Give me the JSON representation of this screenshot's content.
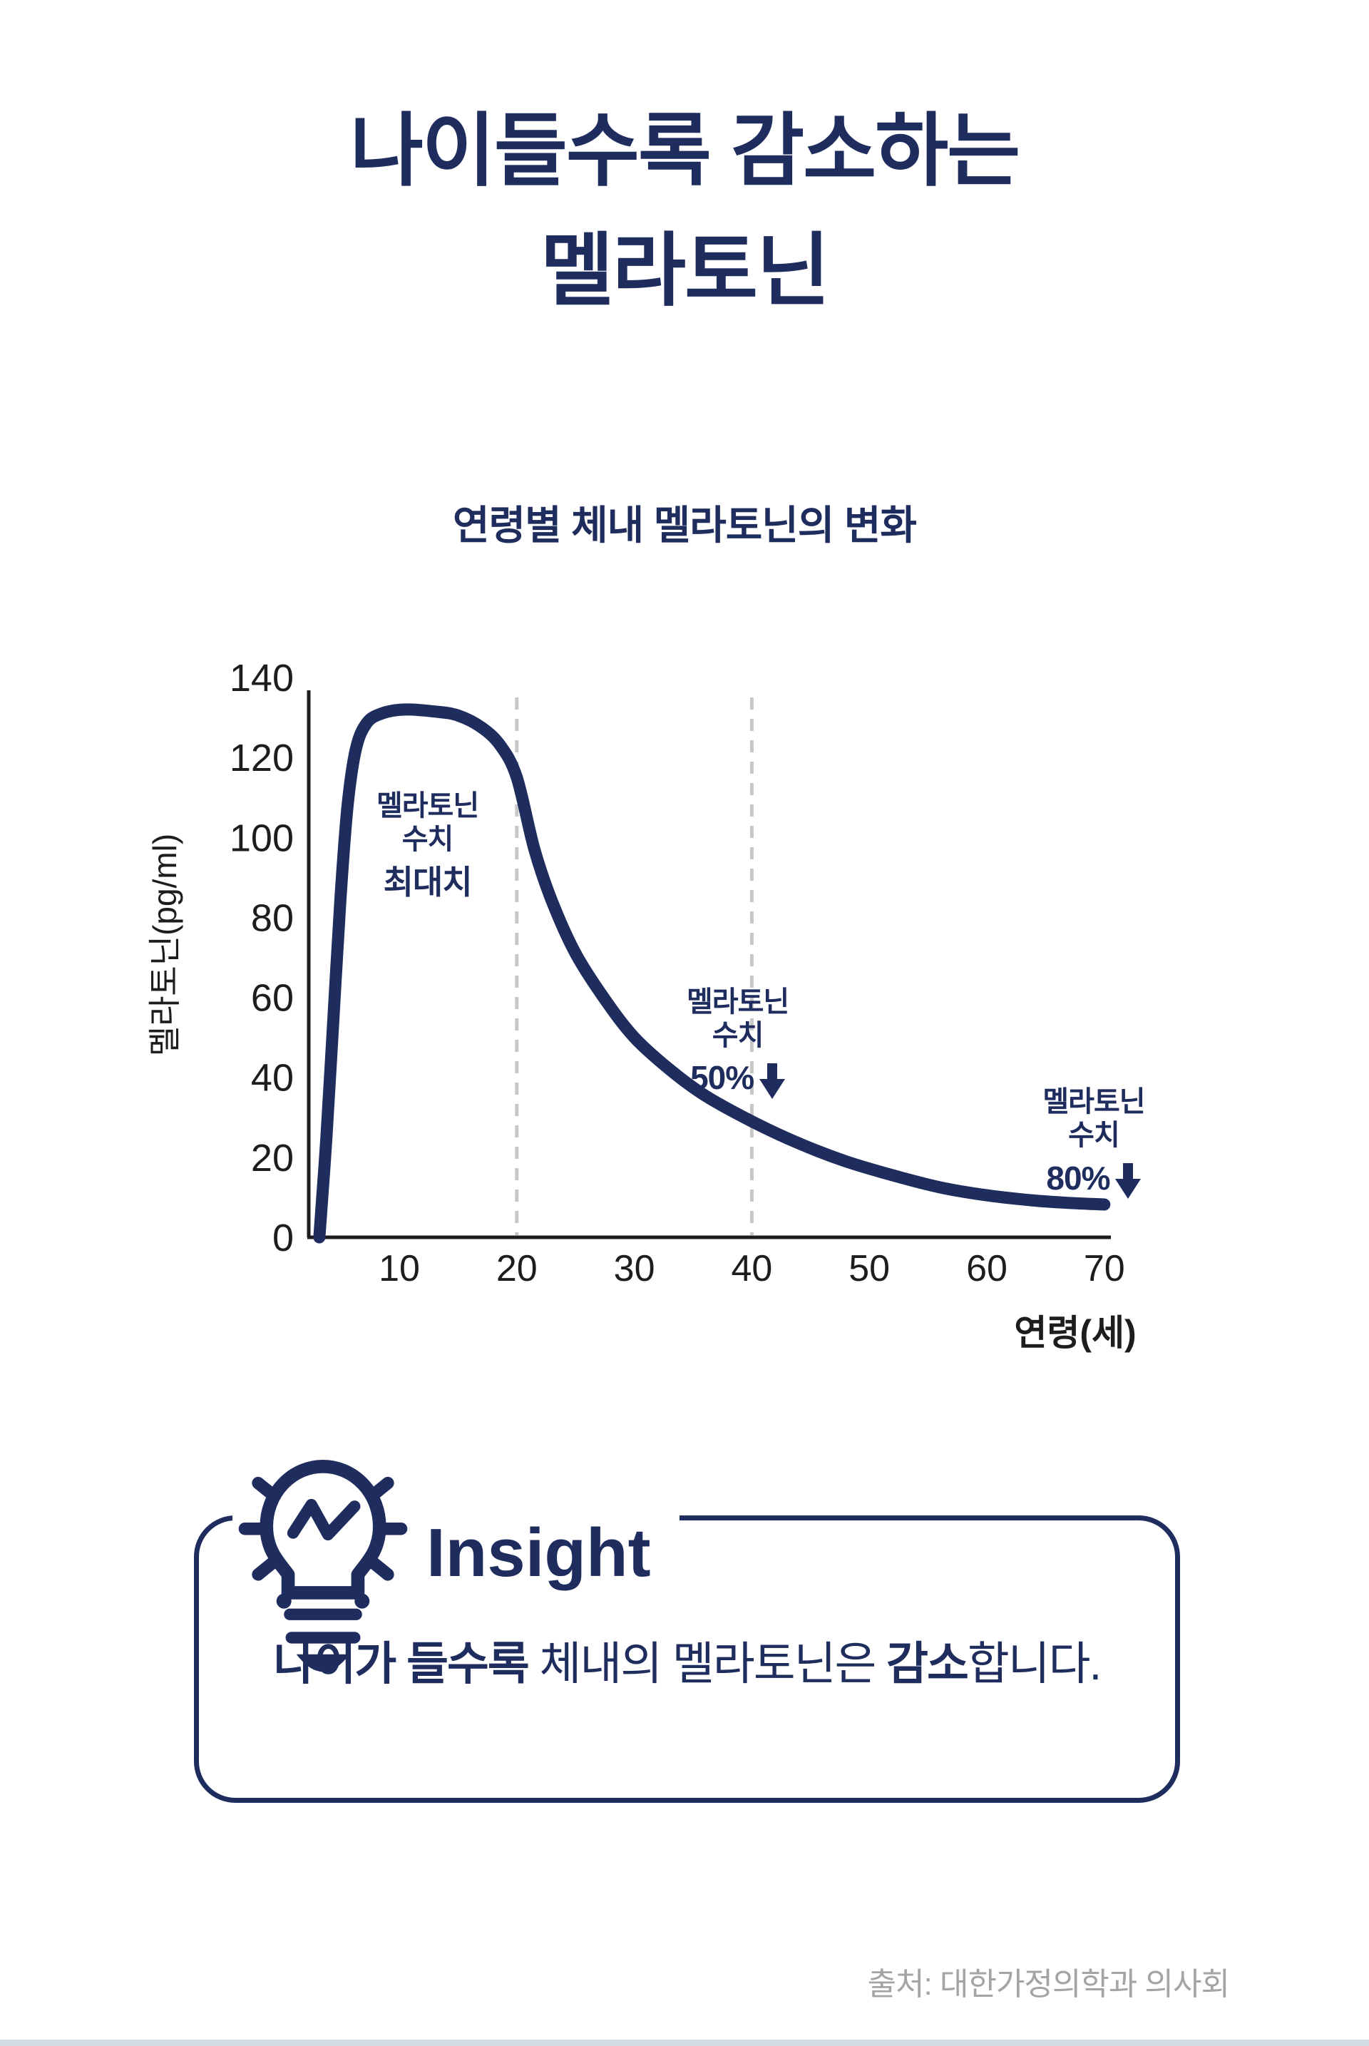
{
  "page": {
    "background": "#ffffff",
    "accent_navy": "#1e2c5e",
    "axis_black": "#1d1d1d",
    "dashed_gray": "#c7c7c7",
    "source_gray": "#a4a4a4",
    "footer_band_color": "#d5dce6"
  },
  "header": {
    "title_lines": [
      "나이들수록 감소하는",
      "멜라토닌"
    ]
  },
  "chart_data": {
    "type": "line",
    "title": "연령별 체내 멜라토닌의 변화",
    "xlabel": "연령(세)",
    "ylabel": "멜라토닌(pg/ml)",
    "x_ticks": [
      10,
      20,
      30,
      40,
      50,
      60,
      70
    ],
    "y_ticks": [
      0,
      20,
      40,
      60,
      80,
      100,
      120,
      140
    ],
    "xlim": [
      2,
      72
    ],
    "ylim": [
      0,
      140
    ],
    "grid": "vertical dashed gridlines at x=20 and x=40 only",
    "grid_dashed_x": [
      20,
      40
    ],
    "legend_position": "none",
    "series": [
      {
        "name": "멜라토닌",
        "color": "#1e2c5e",
        "points": [
          [
            3.2,
            0
          ],
          [
            3.8,
            25
          ],
          [
            4.4,
            55
          ],
          [
            5.0,
            85
          ],
          [
            5.6,
            108
          ],
          [
            6.3,
            122
          ],
          [
            7.2,
            128.5
          ],
          [
            8.5,
            131
          ],
          [
            10.5,
            132
          ],
          [
            13,
            131.5
          ],
          [
            15,
            130.5
          ],
          [
            17,
            127.5
          ],
          [
            18.6,
            123
          ],
          [
            20,
            115
          ],
          [
            21.5,
            97
          ],
          [
            23,
            84
          ],
          [
            25,
            71
          ],
          [
            27.5,
            59.5
          ],
          [
            30,
            50
          ],
          [
            33,
            42
          ],
          [
            36,
            35.5
          ],
          [
            40,
            29
          ],
          [
            44,
            23.5
          ],
          [
            48,
            19
          ],
          [
            52,
            15.5
          ],
          [
            56,
            12.5
          ],
          [
            60,
            10.5
          ],
          [
            64,
            9.2
          ],
          [
            67,
            8.6
          ],
          [
            70,
            8.2
          ]
        ]
      }
    ],
    "annotations": [
      {
        "x": 12.4,
        "y": 112,
        "lines": [
          "멜라토닌",
          "수치"
        ],
        "value": "최대치",
        "arrow": false
      },
      {
        "x": 38.8,
        "y": 63,
        "lines": [
          "멜라토닌",
          "수치"
        ],
        "value": "50%",
        "arrow": true
      },
      {
        "x": 69.1,
        "y": 38,
        "lines": [
          "멜라토닌",
          "수치"
        ],
        "value": "80%",
        "arrow": true
      }
    ]
  },
  "insight": {
    "heading": "Insight",
    "icon": "lightbulb-icon",
    "text_segments": [
      {
        "text": "나이가 들수록",
        "bold": true
      },
      {
        "text": " 체내의 멜라토닌은 ",
        "bold": false
      },
      {
        "text": "감소",
        "bold": true
      },
      {
        "text": "합니다.",
        "bold": false
      }
    ]
  },
  "footer": {
    "source": "출처: 대한가정의학과 의사회"
  }
}
